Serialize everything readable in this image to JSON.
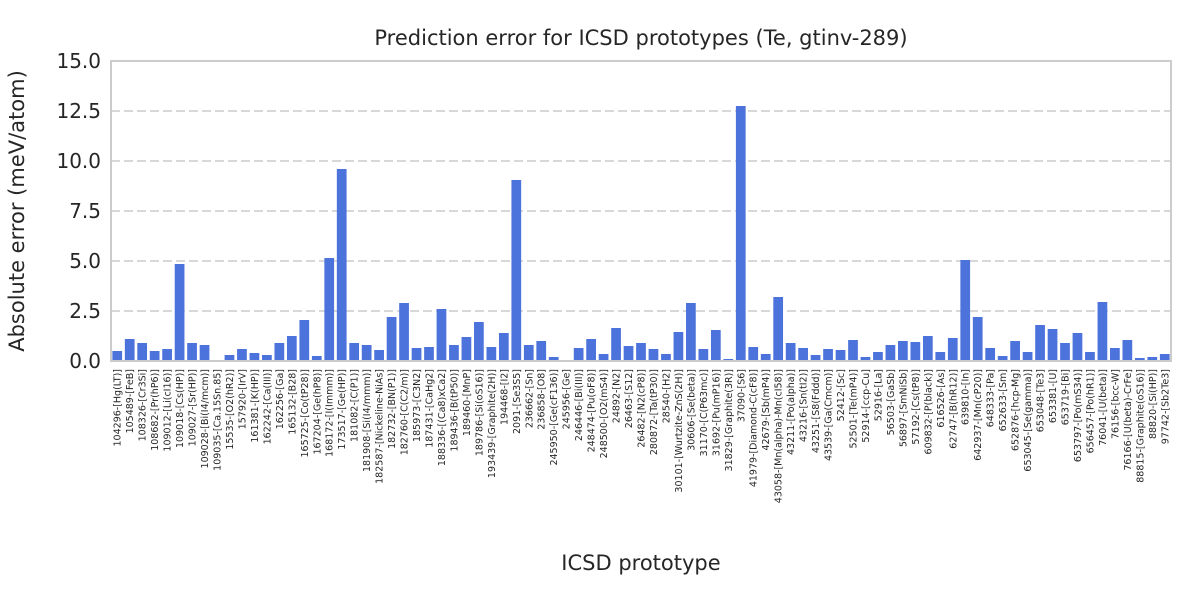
{
  "chart_data": {
    "type": "bar",
    "title": "Prediction error for ICSD prototypes (Te, gtinv-289)",
    "xlabel": "ICSD prototype",
    "ylabel": "Absolute error (meV/atom)",
    "ylim": [
      0,
      15
    ],
    "yticks": [
      "0.0",
      "2.5",
      "5.0",
      "7.5",
      "10.0",
      "12.5",
      "15.0"
    ],
    "grid": "y",
    "bar_color": "#4c72db",
    "categories": [
      "104296-[Hg(LT)]",
      "105489-[FeB]",
      "108326-[Cr3Si]",
      "108682-[Pr(hP6)]",
      "109012-[Li(cI16)]",
      "109018-[Cs(HP)]",
      "109027-[Sr(HP)]",
      "109028-[Bi(I4/mcm)]",
      "109035-[Ca.15Sn.85]",
      "15535-[O2(hR2)]",
      "157920-[IrV]",
      "161381-[K(HP)]",
      "162242-[Ca(III)]",
      "162256-[Ga]",
      "165132-[B28]",
      "165725-[Co(tP28)]",
      "167204-[Ge(hP8)]",
      "168172-[I(Immm)]",
      "173517-[Ge(HP)]",
      "181082-[C(P1)]",
      "181908-[Si(I4/mmm)]",
      "182587-[Nickeline-NiAs]",
      "182732-[BN(P1)]",
      "182760-[C(C2/m)]",
      "185973-[C3N2]",
      "187431-[CaHg2]",
      "188336-[(Ca8)xCa2]",
      "189436-[B(tP50)]",
      "189460-[MnP]",
      "189786-[Si(oS16)]",
      "193439-[Graphite(2H)]",
      "194468-[I2]",
      "2091-[Se3S5]",
      "236662-[Sn]",
      "236858-[O8]",
      "245950-[Ge(cF136)]",
      "245956-[Ge]",
      "246446-[Bi(III)]",
      "248474-[Pu(oF8)]",
      "248500-[O2(mS4)]",
      "24892-[N2]",
      "26463-[S12]",
      "26482-[N2(cP8)]",
      "280872-[Ta(tP30)]",
      "28540-[H2]",
      "30101-[Wurtzite-ZnS(2H)]",
      "30606-[Se(beta)]",
      "31170-[C(P63mc)]",
      "31692-[Pu(mP16)]",
      "31829-[Graphite(3R)]",
      "37090-[S6]",
      "41979-[Diamond-C(cF8)]",
      "42679-[Sb(mP4)]",
      "43058-[Mn(alpha)-Mn(cI58)]",
      "43211-[Po(alpha)]",
      "43216-[Sn(tI2)]",
      "43251-[S8(Fddd)]",
      "43539-[Ga(Cmcm)]",
      "52412-[Sc]",
      "52501-[Te(mP4)]",
      "52914-[ccp-Cu]",
      "52916-[La]",
      "56503-[GaSb]",
      "56897-[SmNiSb]",
      "57192-[Cs(tP8)]",
      "609832-[P(black)]",
      "616526-[As]",
      "62747-[B(hR12)]",
      "639810-[In]",
      "642937-[Mn(cP20)]",
      "648333-[Pa]",
      "652633-[Sm]",
      "652876-[hcp-Mg]",
      "653045-[Se(gamma)]",
      "653048-[Te3]",
      "653381-[U]",
      "653719-[Bi]",
      "653797-[Po(mS34)]",
      "656457-[Po(hR1)]",
      "76041-[U(beta)]",
      "76156-[bcc-W]",
      "76166-[U(beta)-CrFe]",
      "88815-[Graphite(oS16)]",
      "88820-[Si(HP)]",
      "97742-[Sb2Te3]"
    ],
    "values": [
      0.5,
      1.1,
      0.9,
      0.5,
      0.6,
      4.85,
      0.9,
      0.8,
      0.0,
      0.3,
      0.6,
      0.4,
      0.3,
      0.9,
      1.25,
      2.05,
      0.25,
      5.15,
      9.6,
      0.9,
      0.8,
      0.55,
      2.2,
      2.9,
      0.65,
      0.7,
      2.6,
      0.8,
      1.2,
      1.95,
      0.7,
      1.4,
      9.05,
      0.8,
      1.0,
      0.2,
      0.0,
      0.65,
      1.1,
      0.35,
      1.65,
      0.75,
      0.9,
      0.6,
      0.35,
      1.45,
      2.9,
      0.6,
      1.55,
      0.1,
      12.75,
      0.7,
      0.35,
      3.2,
      0.9,
      0.65,
      0.3,
      0.6,
      0.55,
      1.05,
      0.2,
      0.45,
      0.8,
      1.0,
      0.95,
      1.25,
      0.45,
      1.15,
      5.05,
      2.2,
      0.65,
      0.25,
      1.0,
      0.45,
      1.8,
      1.6,
      0.9,
      1.4,
      0.45,
      2.95,
      0.65,
      1.05,
      0.15,
      0.2,
      0.35
    ]
  }
}
